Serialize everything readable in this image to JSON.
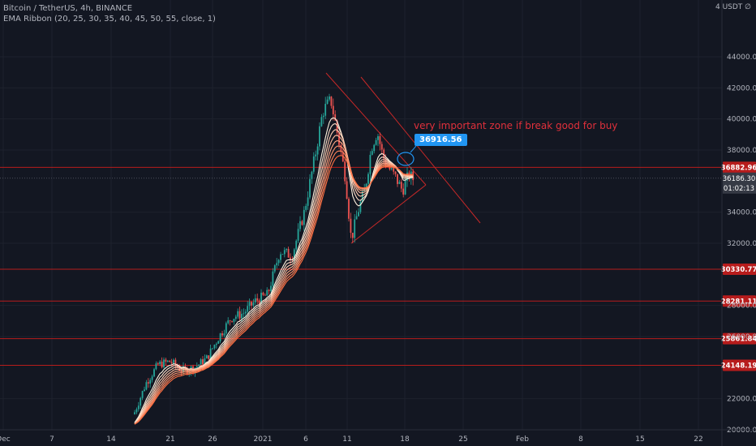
{
  "legend": {
    "symbol": "Bitcoin / TetherUS, 4h, BINANCE",
    "indicator": "EMA Ribbon (20, 25, 30, 35, 40, 45, 50, 55, close, 1)"
  },
  "unit_label": "4 USDT ∅",
  "annotation_text": "very important zone if break good for buy",
  "callout_value": "36916.56",
  "chart_data": {
    "type": "candlestick",
    "instrument": "BTCUSDT",
    "timeframe": "4h",
    "exchange": "BINANCE",
    "ylim": [
      20000,
      46000
    ],
    "y_ticks": [
      {
        "label": "20000.00",
        "value": 20000
      },
      {
        "label": "22000.00",
        "value": 22000
      },
      {
        "label": "26000.00",
        "value": 26000
      },
      {
        "label": "28000.00",
        "value": 28000
      },
      {
        "label": "32000.00",
        "value": 32000
      },
      {
        "label": "34000.00",
        "value": 34000
      },
      {
        "label": "38000.00",
        "value": 38000
      },
      {
        "label": "40000.00",
        "value": 40000
      },
      {
        "label": "42000.00",
        "value": 42000
      },
      {
        "label": "44000.00",
        "value": 44000
      }
    ],
    "x_ticks": [
      "Dec",
      "7",
      "14",
      "21",
      "26",
      "2021",
      "6",
      "11",
      "18",
      "25",
      "Feb",
      "8",
      "15",
      "22"
    ],
    "horizontal_levels": [
      {
        "label": "36882.96",
        "value": 36882.96
      },
      {
        "label": "30330.77",
        "value": 30330.77
      },
      {
        "label": "28281.11",
        "value": 28281.11
      },
      {
        "label": "25861.84",
        "value": 25861.84
      },
      {
        "label": "24148.19",
        "value": 24148.19
      }
    ],
    "current_price": {
      "label": "36186.30",
      "value": 36186.3,
      "countdown": "01:02:13"
    },
    "colors": {
      "up": "#26a69a",
      "down": "#ef5350",
      "level": "#b71c1c",
      "level_label_bg": "#b71c1c",
      "ribbon_inner": "#fff3e0",
      "ribbon_outer": "#ff7043",
      "trendline": "#c62828",
      "current_label_bg": "#363a45"
    }
  }
}
